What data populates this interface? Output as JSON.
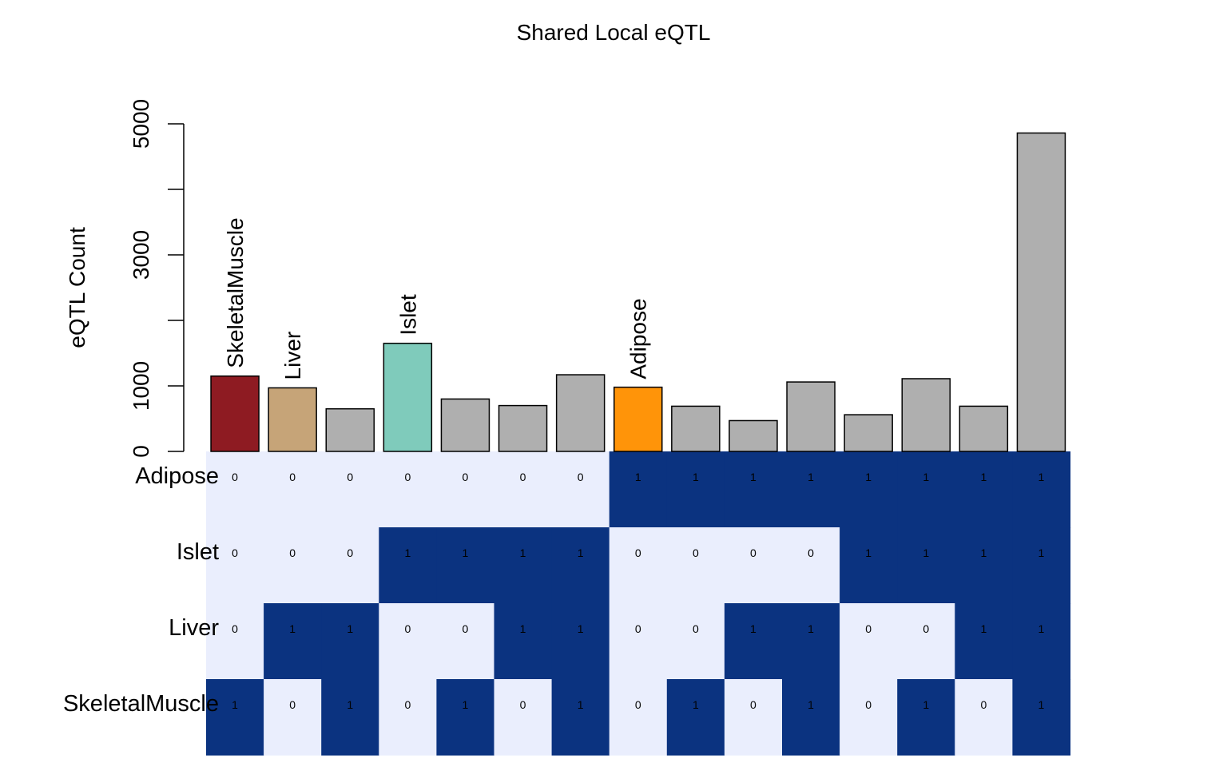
{
  "chart_data": {
    "type": "bar",
    "title": "Shared Local eQTL",
    "ylabel": "eQTL Count",
    "xlabel": "",
    "ylim": [
      0,
      5000
    ],
    "yticks": [
      0,
      1000,
      3000,
      5000
    ],
    "grid": false,
    "values": [
      1150,
      970,
      650,
      1650,
      800,
      700,
      1170,
      980,
      690,
      470,
      1060,
      560,
      1110,
      690,
      4860
    ],
    "bar_colors": [
      "#8E1B22",
      "#C6A478",
      "#AFAFAF",
      "#7FCBBB",
      "#AFAFAF",
      "#AFAFAF",
      "#AFAFAF",
      "#FF9409",
      "#AFAFAF",
      "#AFAFAF",
      "#AFAFAF",
      "#AFAFAF",
      "#AFAFAF",
      "#AFAFAF",
      "#AFAFAF"
    ],
    "bar_labels": [
      "SkeletalMuscle",
      "Liver",
      "",
      "Islet",
      "",
      "",
      "",
      "Adipose",
      "",
      "",
      "",
      "",
      "",
      "",
      ""
    ],
    "matrix": {
      "rows": [
        {
          "name": "Adipose",
          "values": [
            0,
            0,
            0,
            0,
            0,
            0,
            0,
            1,
            1,
            1,
            1,
            1,
            1,
            1,
            1
          ]
        },
        {
          "name": "Islet",
          "values": [
            0,
            0,
            0,
            1,
            1,
            1,
            1,
            0,
            0,
            0,
            0,
            1,
            1,
            1,
            1
          ]
        },
        {
          "name": "Liver",
          "values": [
            0,
            1,
            1,
            0,
            0,
            1,
            1,
            0,
            0,
            1,
            1,
            0,
            0,
            1,
            1
          ]
        },
        {
          "name": "SkeletalMuscle",
          "values": [
            1,
            0,
            1,
            0,
            1,
            0,
            1,
            0,
            1,
            0,
            1,
            0,
            1,
            0,
            1
          ]
        }
      ],
      "color_on": "#0B3380",
      "color_off": "#EAEEFD"
    }
  }
}
